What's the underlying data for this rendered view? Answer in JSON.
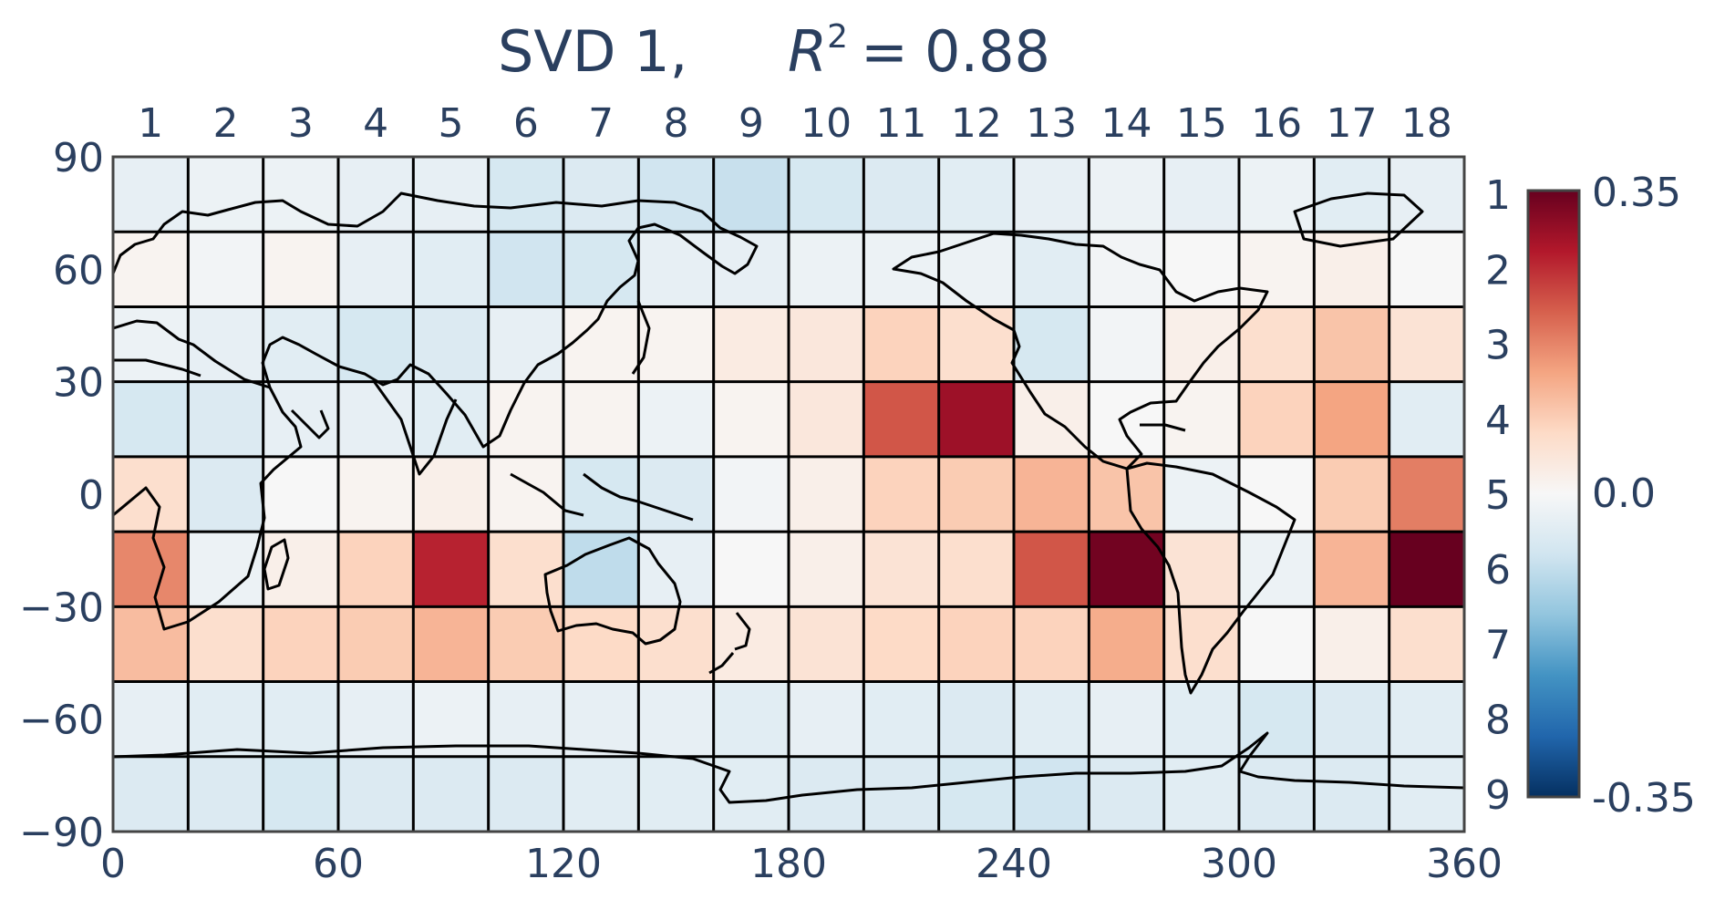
{
  "chart_data": {
    "type": "heatmap",
    "title": "SVD 1,",
    "title_r2": {
      "symbol": "R",
      "exponent": "2",
      "equals": "=",
      "value": "0.88"
    },
    "x_ticks": [
      "0",
      "60",
      "120",
      "180",
      "240",
      "300",
      "360"
    ],
    "y_ticks": [
      "90",
      "60",
      "30",
      "0",
      "−30",
      "−60",
      "−90"
    ],
    "column_labels": [
      "1",
      "2",
      "3",
      "4",
      "5",
      "6",
      "7",
      "8",
      "9",
      "10",
      "11",
      "12",
      "13",
      "14",
      "15",
      "16",
      "17",
      "18"
    ],
    "row_labels": [
      "1",
      "2",
      "3",
      "4",
      "5",
      "6",
      "7",
      "8",
      "9"
    ],
    "xlim": [
      0,
      360
    ],
    "ylim": [
      -90,
      90
    ],
    "grid": true,
    "colorscale": "RdBu reversed",
    "colorbar": {
      "max": 0.35,
      "mid": 0.0,
      "min": -0.35,
      "max_label": "0.35",
      "mid_label": "0.0",
      "min_label": "-0.35"
    },
    "values": [
      [
        -0.03,
        -0.02,
        -0.02,
        -0.03,
        -0.03,
        -0.06,
        -0.05,
        -0.07,
        -0.08,
        -0.06,
        -0.05,
        -0.04,
        -0.03,
        -0.02,
        -0.03,
        -0.02,
        -0.04,
        -0.03
      ],
      [
        0.01,
        -0.01,
        0.01,
        -0.03,
        -0.04,
        -0.07,
        -0.06,
        -0.03,
        -0.03,
        -0.02,
        -0.02,
        -0.02,
        -0.04,
        -0.01,
        0.0,
        0.01,
        0.02,
        0.0
      ],
      [
        -0.02,
        -0.03,
        -0.04,
        -0.06,
        -0.05,
        -0.03,
        0.01,
        0.01,
        0.03,
        0.04,
        0.08,
        0.06,
        -0.06,
        -0.01,
        0.02,
        0.06,
        0.1,
        0.05
      ],
      [
        -0.06,
        -0.05,
        -0.03,
        -0.03,
        -0.04,
        0.01,
        0.01,
        -0.02,
        0.01,
        0.04,
        0.22,
        0.3,
        0.02,
        0.0,
        0.01,
        0.08,
        0.14,
        -0.04
      ],
      [
        0.06,
        -0.05,
        0.0,
        0.01,
        0.02,
        0.01,
        -0.06,
        -0.05,
        -0.01,
        0.02,
        0.08,
        0.09,
        0.12,
        0.1,
        -0.02,
        0.0,
        0.09,
        0.18
      ],
      [
        0.17,
        -0.02,
        0.02,
        0.08,
        0.27,
        0.06,
        -0.09,
        -0.03,
        0.0,
        0.02,
        0.05,
        0.06,
        0.22,
        0.34,
        0.05,
        -0.02,
        0.12,
        0.35
      ],
      [
        0.11,
        0.06,
        0.08,
        0.09,
        0.12,
        0.09,
        0.07,
        0.06,
        0.03,
        0.05,
        0.07,
        0.08,
        0.08,
        0.13,
        0.06,
        0.0,
        0.02,
        0.06
      ],
      [
        -0.03,
        -0.04,
        -0.04,
        -0.03,
        -0.02,
        -0.03,
        -0.03,
        -0.03,
        -0.04,
        -0.03,
        -0.04,
        -0.05,
        -0.04,
        -0.03,
        -0.04,
        -0.06,
        -0.05,
        -0.04
      ],
      [
        -0.05,
        -0.05,
        -0.06,
        -0.05,
        -0.05,
        -0.05,
        -0.04,
        -0.04,
        -0.04,
        -0.05,
        -0.05,
        -0.06,
        -0.07,
        -0.05,
        -0.04,
        -0.05,
        -0.05,
        -0.04
      ]
    ]
  }
}
